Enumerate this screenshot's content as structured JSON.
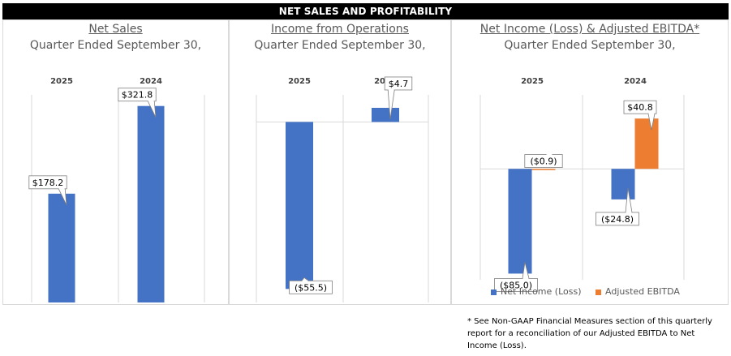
{
  "banner": "NET SALES AND PROFITABILITY",
  "panels": [
    {
      "title": "Net Sales",
      "subtitle": "Quarter Ended September 30,"
    },
    {
      "title": "Income from Operations",
      "subtitle": "Quarter Ended September 30,"
    },
    {
      "title": "Net Income (Loss) & Adjusted EBITDA*",
      "subtitle": "Quarter Ended September 30,"
    }
  ],
  "footnote": "* See Non-GAAP Financial Measures section of this quarterly report for a reconciliation of our Adjusted EBITDA to Net Income (Loss).",
  "colors": {
    "blue": "#4472C4",
    "orange": "#ED7D31"
  },
  "chart_data": [
    {
      "type": "bar",
      "title": "Net Sales",
      "subtitle": "Quarter Ended September 30,",
      "categories": [
        "2025",
        "2024"
      ],
      "series": [
        {
          "values": [
            178.2,
            321.8
          ],
          "labels": [
            "$178.2",
            "$321.8"
          ]
        }
      ],
      "ylim": [
        0,
        340
      ]
    },
    {
      "type": "bar",
      "title": "Income from Operations",
      "subtitle": "Quarter Ended September 30,",
      "categories": [
        "2025",
        "2024"
      ],
      "series": [
        {
          "values": [
            -55.5,
            4.7
          ],
          "labels": [
            "($55.5)",
            "$4.7"
          ]
        }
      ],
      "ylim": [
        -60,
        9
      ]
    },
    {
      "type": "bar",
      "title": "Net Income (Loss) & Adjusted EBITDA*",
      "subtitle": "Quarter Ended September 30,",
      "categories": [
        "2025",
        "2024"
      ],
      "series": [
        {
          "name": "Net Income (Loss)",
          "values": [
            -85.0,
            -24.8
          ],
          "labels": [
            "($85.0)",
            "($24.8)"
          ]
        },
        {
          "name": "Adjusted EBITDA",
          "values": [
            -0.9,
            40.8
          ],
          "labels": [
            "($0.9)",
            "$40.8"
          ]
        }
      ],
      "ylim": [
        -90,
        60
      ],
      "legend": "bottom"
    }
  ]
}
